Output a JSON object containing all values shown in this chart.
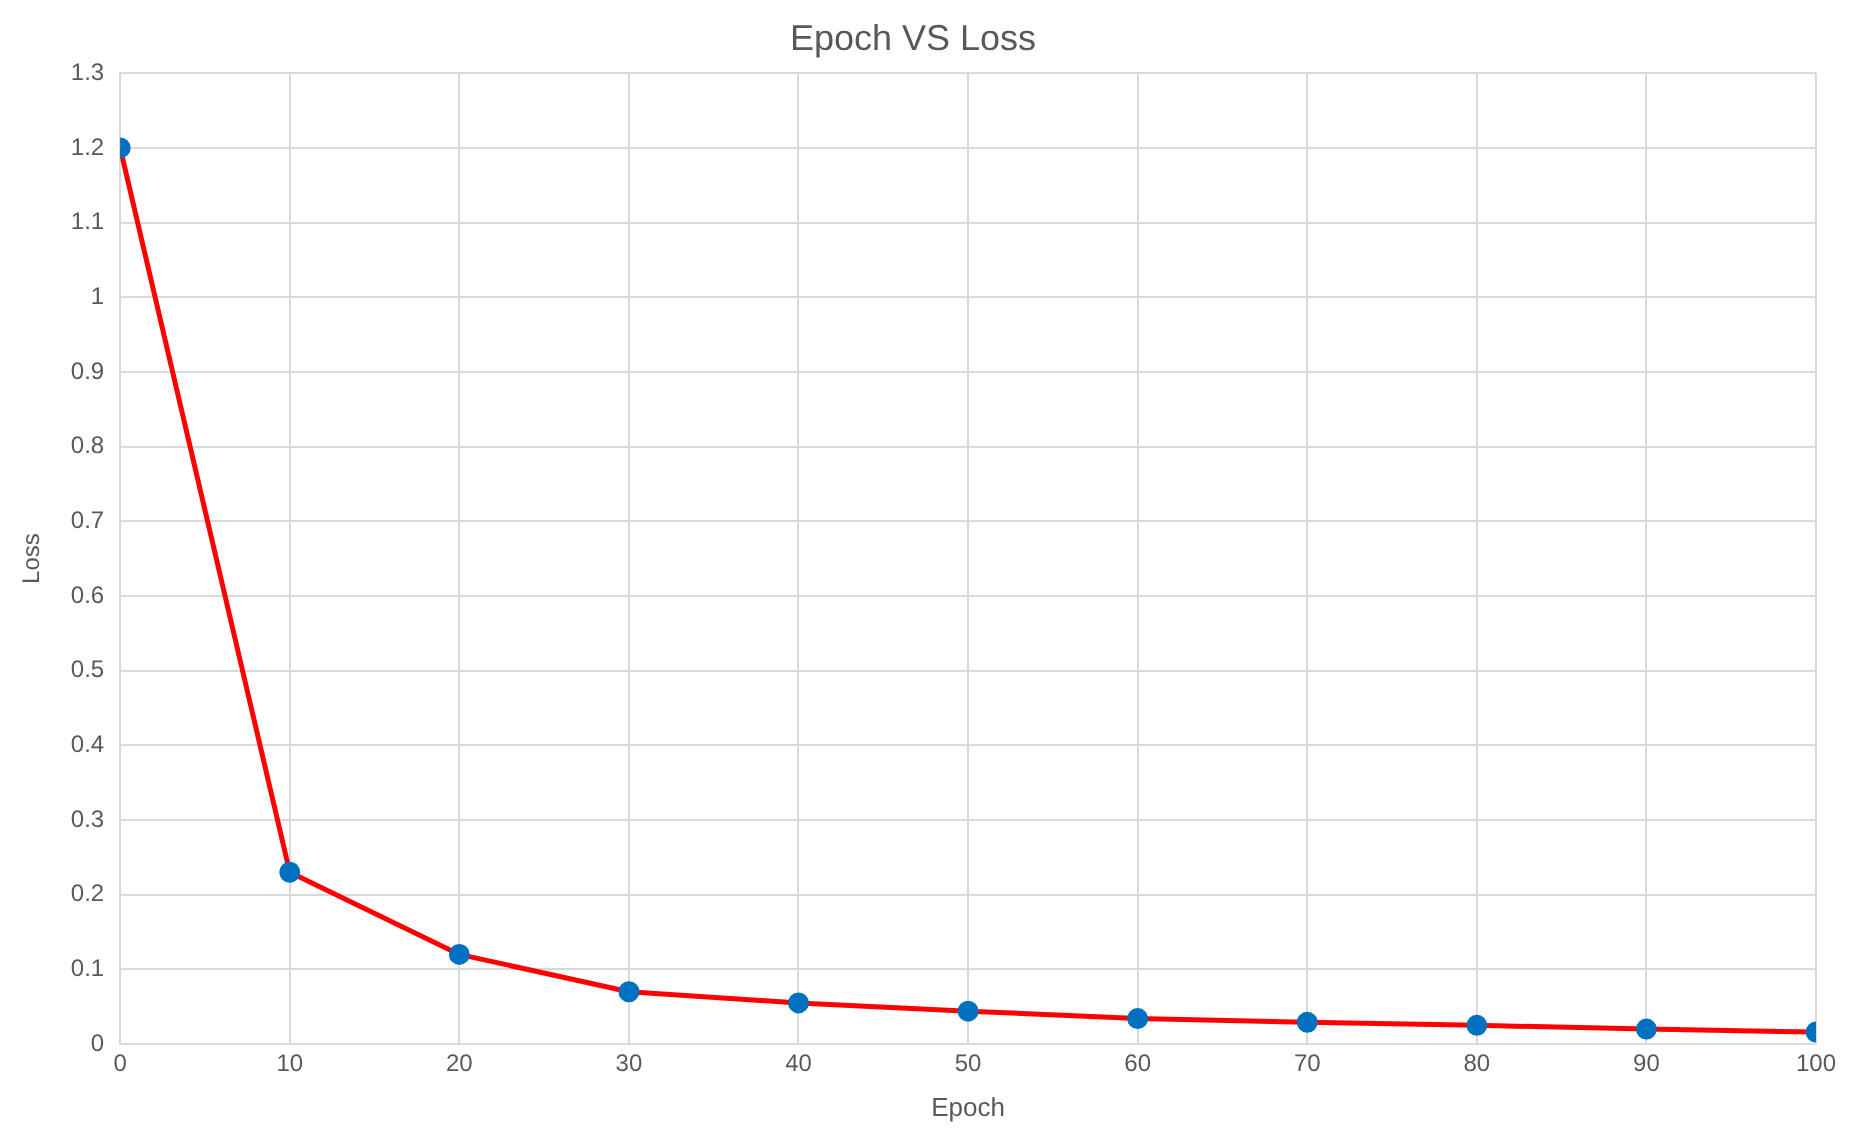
{
  "chart_data": {
    "type": "line",
    "title": "Epoch VS Loss",
    "xlabel": "Epoch",
    "ylabel": "Loss",
    "x": [
      0,
      10,
      20,
      30,
      40,
      50,
      60,
      70,
      80,
      90,
      100
    ],
    "series": [
      {
        "color": "#ff0000",
        "colors": [
          "#0070c0",
          "#0070c0",
          "#0070c0",
          "#0070c0",
          "#0070c0",
          "#0070c0",
          "#0070c0",
          "#0070c0",
          "#0070c0",
          "#0070c0",
          "#0070c0"
        ],
        "values": [
          1.2,
          0.23,
          0.12,
          0.07,
          0.055,
          0.044,
          0.034,
          0.029,
          0.025,
          0.02,
          0.016
        ]
      }
    ],
    "xlim": [
      0,
      100
    ],
    "xticks": [
      0,
      10,
      20,
      30,
      40,
      50,
      60,
      70,
      80,
      90,
      100
    ],
    "ylim": [
      0,
      1.3
    ],
    "yticks": [
      0,
      0.1,
      0.2,
      0.3,
      0.4,
      0.5,
      0.6,
      0.7,
      0.8,
      0.9,
      1,
      1.1,
      1.2,
      1.3
    ],
    "grid": true,
    "marker": "circle",
    "line_style": "solid"
  }
}
